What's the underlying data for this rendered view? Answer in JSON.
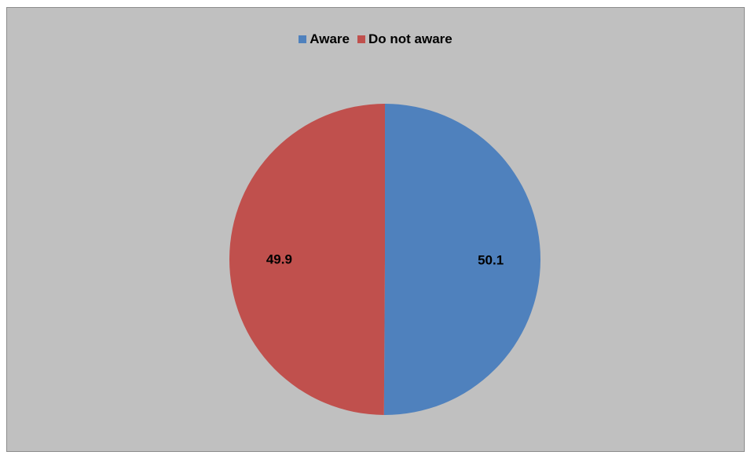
{
  "chart_data": {
    "type": "pie",
    "title": "",
    "categories": [
      "Aware",
      "Do not aware"
    ],
    "values": [
      50.1,
      49.9
    ],
    "labels": [
      "50.1",
      "49.9"
    ],
    "colors": [
      "#4f81bd",
      "#c0504d"
    ],
    "start_angle_deg": 0,
    "direction": "clockwise",
    "legend_placement": "top",
    "background": "#c0c0c0"
  }
}
